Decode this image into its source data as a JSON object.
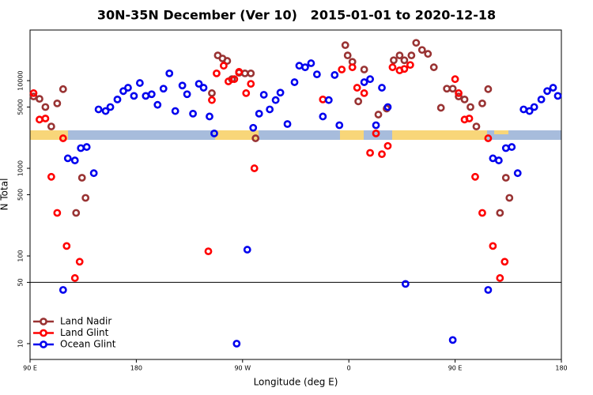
{
  "chart_data": {
    "type": "scatter",
    "title": "30N-35N December (Ver 10)   2015-01-01 to 2020-12-18",
    "x_label": "Longitude (deg E)",
    "y_label": "N Total",
    "xlim": [
      90,
      540
    ],
    "ylim": [
      6.6,
      37800
    ],
    "y_log": true,
    "xticks": [
      {
        "value": 90,
        "label": "90 E"
      },
      {
        "value": 180,
        "label": "180"
      },
      {
        "value": 270,
        "label": "90 W"
      },
      {
        "value": 360,
        "label": "0"
      },
      {
        "value": 450,
        "label": "90 E"
      },
      {
        "value": 540,
        "label": "180"
      }
    ],
    "yticks": [
      10,
      50,
      100,
      500,
      1000,
      5000,
      10000
    ],
    "hline": 50,
    "legend_position": "bottom-left",
    "series": [
      {
        "name": "Land Nadir",
        "color": "#993333",
        "x": [
          93,
          98,
          103,
          108,
          113,
          118,
          129,
          134,
          137,
          244,
          249,
          253,
          257,
          261,
          267,
          272,
          277,
          281,
          357,
          359,
          363,
          368,
          373,
          385,
          392,
          398,
          403,
          407,
          413,
          417,
          422,
          427,
          432,
          438,
          443,
          448,
          453,
          458,
          463,
          468,
          473,
          478,
          488,
          493,
          496
        ],
        "values": [
          6600,
          6200,
          5000,
          3000,
          5500,
          8000,
          310,
          780,
          460,
          7200,
          19400,
          17900,
          16800,
          10400,
          12300,
          12100,
          12100,
          2200,
          25400,
          19400,
          16400,
          5800,
          13400,
          4100,
          4800,
          17100,
          19400,
          17100,
          19400,
          27000,
          22400,
          20200,
          14200,
          4900,
          8100,
          8100,
          6600,
          6100,
          5000,
          3000,
          5500,
          8000,
          310,
          780,
          460
        ]
      },
      {
        "name": "Land Glint",
        "color": "#ff0000",
        "x": [
          93,
          98,
          103,
          108,
          113,
          118,
          121,
          128,
          132,
          241,
          244,
          248,
          254,
          258,
          263,
          267,
          273,
          277,
          280,
          338,
          354,
          363,
          367,
          373,
          378,
          383,
          388,
          393,
          397,
          403,
          407,
          412,
          450,
          453,
          458,
          462,
          467,
          473,
          478,
          482,
          488,
          492
        ],
        "values": [
          7200,
          3600,
          3700,
          800,
          310,
          2200,
          130,
          56,
          86,
          113,
          6000,
          12100,
          14800,
          9800,
          10400,
          12600,
          7200,
          9200,
          1000,
          6100,
          13400,
          14200,
          8300,
          7200,
          1500,
          2500,
          1450,
          1800,
          14200,
          13100,
          13600,
          15100,
          10400,
          7200,
          3600,
          3700,
          800,
          310,
          2200,
          130,
          56,
          86
        ]
      },
      {
        "name": "Ocean Glint",
        "color": "#0000ee",
        "x": [
          118,
          122,
          128,
          133,
          138,
          144,
          148,
          154,
          158,
          164,
          169,
          173,
          178,
          183,
          188,
          193,
          198,
          203,
          208,
          213,
          219,
          223,
          228,
          233,
          237,
          242,
          246,
          265,
          274,
          279,
          284,
          288,
          293,
          298,
          302,
          308,
          314,
          318,
          323,
          328,
          333,
          338,
          343,
          348,
          352,
          373,
          378,
          383,
          388,
          393,
          408,
          448,
          478,
          482,
          487,
          493,
          498,
          503,
          508,
          513,
          517,
          523,
          528,
          533,
          537
        ],
        "values": [
          41,
          1300,
          1230,
          1700,
          1750,
          880,
          4700,
          4500,
          5000,
          6100,
          7600,
          8300,
          6700,
          9400,
          6700,
          7000,
          5300,
          8100,
          12100,
          4500,
          8800,
          7000,
          4200,
          9200,
          8300,
          3900,
          2500,
          10,
          118,
          2900,
          4200,
          6900,
          4700,
          6000,
          7300,
          3200,
          9600,
          14800,
          14200,
          15800,
          11800,
          3900,
          6000,
          11600,
          3100,
          9600,
          10400,
          3100,
          8300,
          5000,
          48,
          11,
          41,
          1300,
          1230,
          1700,
          1750,
          880,
          4700,
          4500,
          5000,
          6100,
          7600,
          8300,
          6700
        ]
      }
    ]
  }
}
